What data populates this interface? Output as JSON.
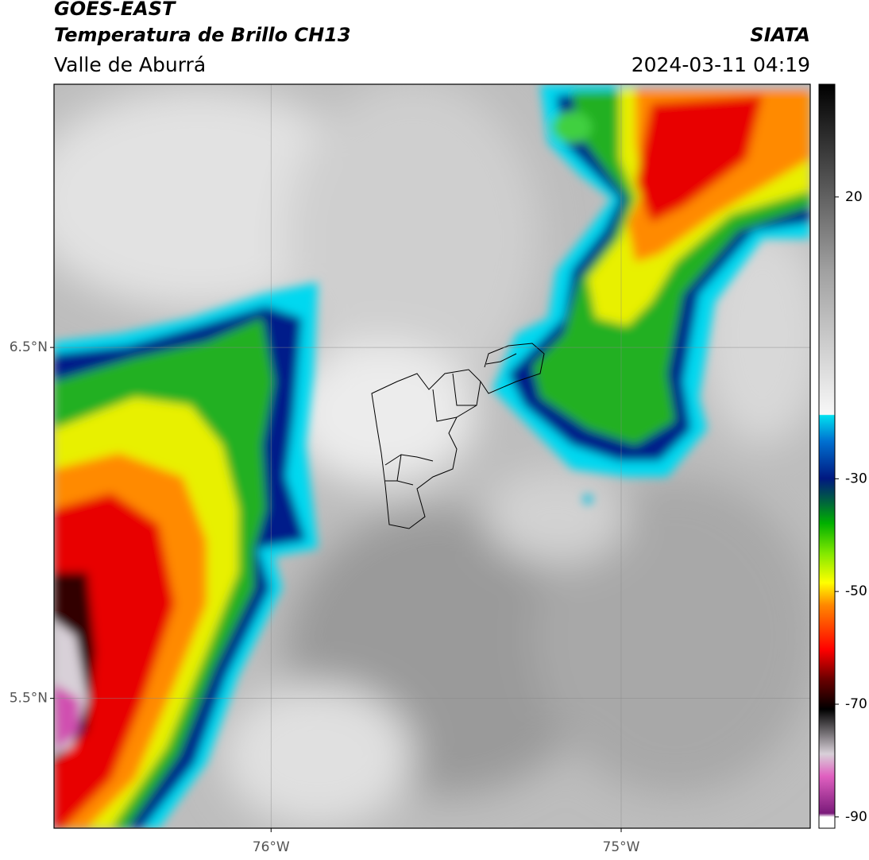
{
  "header": {
    "title": "GOES-EAST",
    "subtitle": "Temperatura de Brillo CH13",
    "region": "Valle de Aburrá",
    "source": "SIATA",
    "datetime": "2024-03-11 04:19"
  },
  "map": {
    "latlim": [
      5.13,
      7.25
    ],
    "lonlim": [
      -76.62,
      -74.46
    ],
    "lat_ticks": [
      {
        "value": 6.5,
        "label": "6.5°N"
      },
      {
        "value": 5.5,
        "label": "5.5°N"
      }
    ],
    "lon_ticks": [
      {
        "value": -76,
        "label": "76°W"
      },
      {
        "value": -75,
        "label": "75°W"
      }
    ]
  },
  "colorbar": {
    "lim": [
      -92,
      40
    ],
    "ticks": [
      20,
      -30,
      -50,
      -70,
      -90
    ]
  }
}
